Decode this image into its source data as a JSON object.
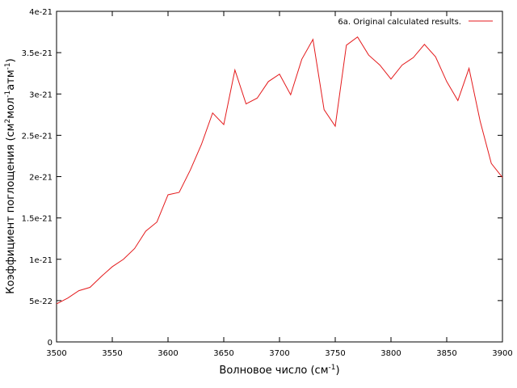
{
  "chart_data": {
    "type": "line",
    "xlabel": {
      "text": "Волновое число (см",
      "sup": "-1",
      "tail": ")"
    },
    "ylabel": {
      "prefix": "Коэффициент поглощения (см",
      "sup1": "2",
      "mid": "мол",
      "sup2": "-1",
      "mid2": "атм",
      "sup3": "-1",
      "tail": ")"
    },
    "xlim": [
      3500,
      3900
    ],
    "ylim": [
      0,
      4e-21
    ],
    "x_ticks": [
      3500,
      3550,
      3600,
      3650,
      3700,
      3750,
      3800,
      3850,
      3900
    ],
    "x_tick_labels": [
      "3500",
      "3550",
      "3600",
      "3650",
      "3700",
      "3750",
      "3800",
      "3850",
      "3900"
    ],
    "y_ticks": [
      0,
      5e-22,
      1e-21,
      1.5e-21,
      2e-21,
      2.5e-21,
      3e-21,
      3.5e-21,
      4e-21
    ],
    "y_tick_labels": [
      "0",
      "5e-22",
      "1e-21",
      "1.5e-21",
      "2e-21",
      "2.5e-21",
      "3e-21",
      "3.5e-21",
      "4e-21"
    ],
    "grid": false,
    "legend_position": "top-right",
    "series": [
      {
        "name": "6a. Original calculated results.",
        "color": "#e41a1c",
        "x": [
          3500,
          3510,
          3520,
          3530,
          3540,
          3550,
          3560,
          3570,
          3580,
          3590,
          3600,
          3610,
          3620,
          3630,
          3640,
          3650,
          3660,
          3670,
          3680,
          3690,
          3700,
          3710,
          3720,
          3730,
          3740,
          3750,
          3760,
          3770,
          3780,
          3790,
          3800,
          3810,
          3820,
          3830,
          3840,
          3850,
          3860,
          3870,
          3880,
          3890,
          3900
        ],
        "y": [
          4.6e-22,
          5.3e-22,
          6.2e-22,
          6.6e-22,
          7.9e-22,
          9.1e-22,
          1e-21,
          1.13e-21,
          1.34e-21,
          1.45e-21,
          1.78e-21,
          1.81e-21,
          2.08e-21,
          2.39e-21,
          2.77e-21,
          2.63e-21,
          3.29e-21,
          2.88e-21,
          2.95e-21,
          3.15e-21,
          3.24e-21,
          2.99e-21,
          3.42e-21,
          3.66e-21,
          2.81e-21,
          2.61e-21,
          3.59e-21,
          3.69e-21,
          3.47e-21,
          3.35e-21,
          3.18e-21,
          3.35e-21,
          3.44e-21,
          3.6e-21,
          3.45e-21,
          3.15e-21,
          2.92e-21,
          3.31e-21,
          2.67e-21,
          2.16e-21,
          1.99e-21
        ]
      }
    ]
  }
}
